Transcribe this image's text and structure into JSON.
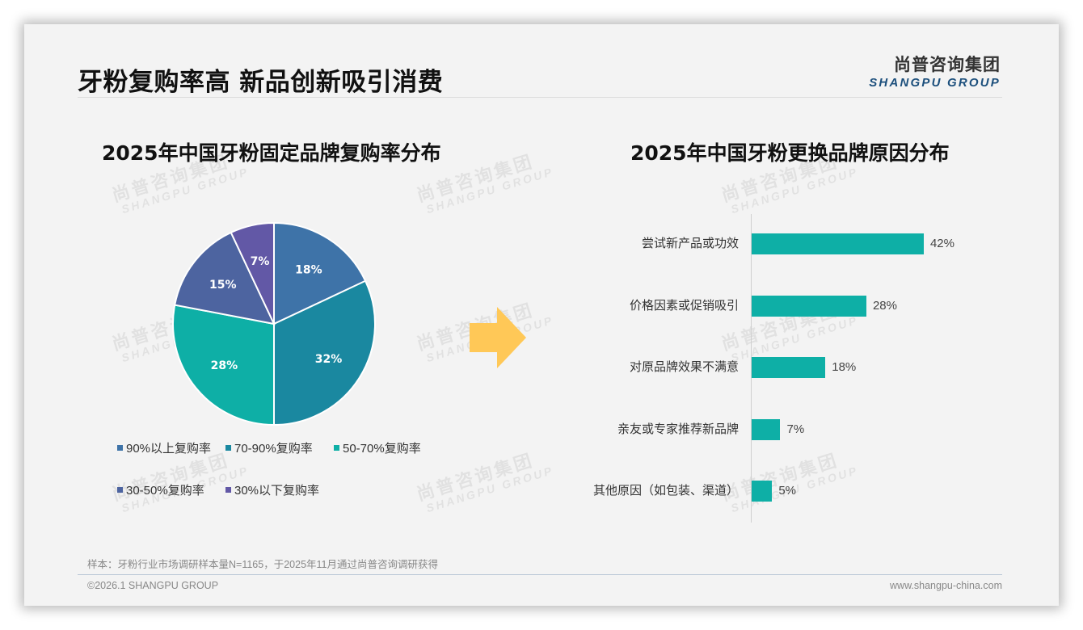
{
  "header": {
    "title": "牙粉复购率高 新品创新吸引消费",
    "logo_cn": "尚普咨询集团",
    "logo_en": "SHANGPU GROUP"
  },
  "watermark": {
    "cn": "尚普咨询集团",
    "en": "SHANGPU GROUP"
  },
  "left_chart": {
    "title": "2025年中国牙粉固定品牌复购率分布"
  },
  "right_chart": {
    "title": "2025年中国牙粉更换品牌原因分布"
  },
  "arrow": {
    "icon": "right-arrow-icon",
    "color": "#FFC857"
  },
  "chart_data": [
    {
      "type": "pie",
      "title": "2025年中国牙粉固定品牌复购率分布",
      "categories": [
        "90%以上复购率",
        "70-90%复购率",
        "50-70%复购率",
        "30-50%复购率",
        "30%以下复购率"
      ],
      "values": [
        18,
        32,
        28,
        15,
        7
      ],
      "labels": [
        "18%",
        "32%",
        "28%",
        "15%",
        "7%"
      ],
      "colors": [
        "#3E73A8",
        "#1A88A0",
        "#0EAFA6",
        "#4D64A0",
        "#6258A6"
      ],
      "legend_position": "bottom",
      "start_angle": "12 o'clock, clockwise"
    },
    {
      "type": "bar",
      "orientation": "horizontal",
      "title": "2025年中国牙粉更换品牌原因分布",
      "categories": [
        "尝试新产品或功效",
        "价格因素或促销吸引",
        "对原品牌效果不满意",
        "亲友或专家推荐新品牌",
        "其他原因（如包装、渠道）"
      ],
      "values": [
        42,
        28,
        18,
        7,
        5
      ],
      "labels": [
        "42%",
        "28%",
        "18%",
        "7%",
        "5%"
      ],
      "color": "#0EAFA6",
      "xlabel": "",
      "ylabel": "",
      "grid": false
    }
  ],
  "footer": {
    "note": "样本：牙粉行业市场调研样本量N=1165，于2025年11月通过尚普咨询调研获得",
    "copyright": "©2026.1 SHANGPU GROUP",
    "website": "www.shangpu-china.com"
  }
}
